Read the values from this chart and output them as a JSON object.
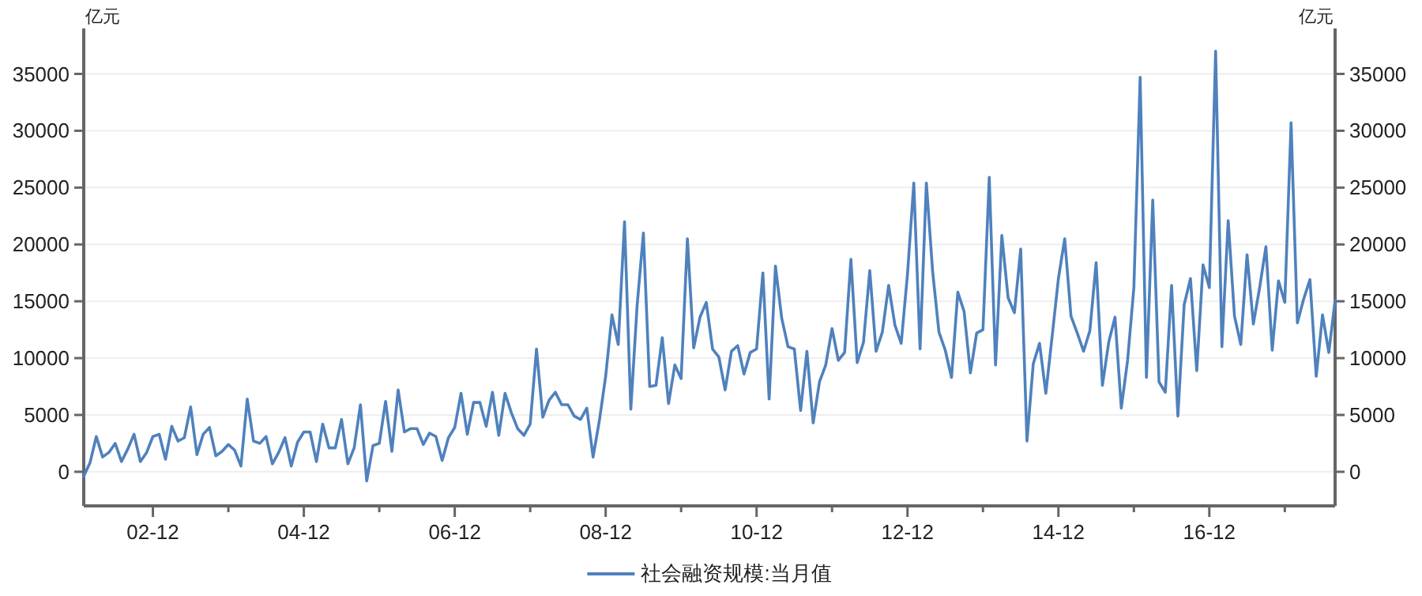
{
  "chart_data": {
    "type": "line",
    "ylabel": "亿元",
    "y2label": "亿元",
    "x": [
      "2002-01",
      "2002-02",
      "2002-03",
      "2002-04",
      "2002-05",
      "2002-06",
      "2002-07",
      "2002-08",
      "2002-09",
      "2002-10",
      "2002-11",
      "2002-12",
      "2003-01",
      "2003-02",
      "2003-03",
      "2003-04",
      "2003-05",
      "2003-06",
      "2003-07",
      "2003-08",
      "2003-09",
      "2003-10",
      "2003-11",
      "2003-12",
      "2004-01",
      "2004-02",
      "2004-03",
      "2004-04",
      "2004-05",
      "2004-06",
      "2004-07",
      "2004-08",
      "2004-09",
      "2004-10",
      "2004-11",
      "2004-12",
      "2005-01",
      "2005-02",
      "2005-03",
      "2005-04",
      "2005-05",
      "2005-06",
      "2005-07",
      "2005-08",
      "2005-09",
      "2005-10",
      "2005-11",
      "2005-12",
      "2006-01",
      "2006-02",
      "2006-03",
      "2006-04",
      "2006-05",
      "2006-06",
      "2006-07",
      "2006-08",
      "2006-09",
      "2006-10",
      "2006-11",
      "2006-12",
      "2007-01",
      "2007-02",
      "2007-03",
      "2007-04",
      "2007-05",
      "2007-06",
      "2007-07",
      "2007-08",
      "2007-09",
      "2007-10",
      "2007-11",
      "2007-12",
      "2008-01",
      "2008-02",
      "2008-03",
      "2008-04",
      "2008-05",
      "2008-06",
      "2008-07",
      "2008-08",
      "2008-09",
      "2008-10",
      "2008-11",
      "2008-12",
      "2009-01",
      "2009-02",
      "2009-03",
      "2009-04",
      "2009-05",
      "2009-06",
      "2009-07",
      "2009-08",
      "2009-09",
      "2009-10",
      "2009-11",
      "2009-12",
      "2010-01",
      "2010-02",
      "2010-03",
      "2010-04",
      "2010-05",
      "2010-06",
      "2010-07",
      "2010-08",
      "2010-09",
      "2010-10",
      "2010-11",
      "2010-12",
      "2011-01",
      "2011-02",
      "2011-03",
      "2011-04",
      "2011-05",
      "2011-06",
      "2011-07",
      "2011-08",
      "2011-09",
      "2011-10",
      "2011-11",
      "2011-12",
      "2012-01",
      "2012-02",
      "2012-03",
      "2012-04",
      "2012-05",
      "2012-06",
      "2012-07",
      "2012-08",
      "2012-09",
      "2012-10",
      "2012-11",
      "2012-12",
      "2013-01",
      "2013-02",
      "2013-03",
      "2013-04",
      "2013-05",
      "2013-06",
      "2013-07",
      "2013-08",
      "2013-09",
      "2013-10",
      "2013-11",
      "2013-12",
      "2014-01",
      "2014-02",
      "2014-03",
      "2014-04",
      "2014-05",
      "2014-06",
      "2014-07",
      "2014-08",
      "2014-09",
      "2014-10",
      "2014-11",
      "2014-12",
      "2015-01",
      "2015-02",
      "2015-03",
      "2015-04",
      "2015-05",
      "2015-06",
      "2015-07",
      "2015-08",
      "2015-09",
      "2015-10",
      "2015-11",
      "2015-12",
      "2016-01",
      "2016-02",
      "2016-03",
      "2016-04",
      "2016-05",
      "2016-06",
      "2016-07",
      "2016-08",
      "2016-09",
      "2016-10",
      "2016-11",
      "2016-12",
      "2017-01",
      "2017-02",
      "2017-03",
      "2017-04",
      "2017-05",
      "2017-06",
      "2017-07",
      "2017-08",
      "2017-09",
      "2017-10",
      "2017-11",
      "2017-12",
      "2018-01",
      "2018-02",
      "2018-03",
      "2018-04",
      "2018-05",
      "2018-06",
      "2018-07",
      "2018-08"
    ],
    "series": [
      {
        "name": "社会融资规模:当月值",
        "color": "#4f81bd",
        "values": [
          -400,
          800,
          3100,
          1300,
          1700,
          2500,
          900,
          2000,
          3300,
          900,
          1700,
          3100,
          3300,
          1100,
          4000,
          2700,
          3000,
          5700,
          1500,
          3300,
          3900,
          1400,
          1800,
          2400,
          1900,
          500,
          6400,
          2700,
          2500,
          3100,
          700,
          1700,
          3000,
          500,
          2600,
          3500,
          3500,
          900,
          4200,
          2100,
          2100,
          4600,
          700,
          2100,
          5900,
          -800,
          2300,
          2500,
          6200,
          1800,
          7200,
          3500,
          3800,
          3800,
          2400,
          3400,
          3100,
          1000,
          3000,
          3900,
          6900,
          3300,
          6100,
          6100,
          4000,
          7000,
          3200,
          6900,
          5200,
          3800,
          3200,
          4200,
          10800,
          4800,
          6300,
          7000,
          5900,
          5900,
          4900,
          4600,
          5600,
          1300,
          4500,
          8400,
          13800,
          11200,
          22000,
          5500,
          14600,
          21000,
          7500,
          7600,
          11800,
          6000,
          9400,
          8200,
          20500,
          10900,
          13600,
          14900,
          10800,
          10100,
          7200,
          10600,
          11100,
          8600,
          10500,
          10800,
          17500,
          6400,
          18100,
          13500,
          11000,
          10800,
          5400,
          10600,
          4300,
          7900,
          9400,
          12600,
          9800,
          10500,
          18700,
          9600,
          11400,
          17700,
          10600,
          12300,
          16400,
          12900,
          11300,
          17400,
          25400,
          10800,
          25400,
          17600,
          12300,
          10700,
          8300,
          15800,
          14100,
          8700,
          12200,
          12500,
          25900,
          9400,
          20800,
          15300,
          14000,
          19600,
          2700,
          9500,
          11300,
          6900,
          11900,
          17000,
          20500,
          13700,
          12200,
          10600,
          12400,
          18400,
          7600,
          11400,
          13600,
          5600,
          9800,
          16200,
          34700,
          8300,
          23900,
          7900,
          7000,
          16400,
          4900,
          14700,
          17000,
          8900,
          18200,
          16200,
          37000,
          11000,
          22100,
          13700,
          11200,
          19100,
          13000,
          16200,
          19800,
          10700,
          16800,
          14900,
          30700,
          13100,
          15200,
          16900,
          8400,
          13800,
          10500,
          15100
        ]
      }
    ],
    "xlim": [
      "2002-01",
      "2018-08"
    ],
    "xticks": [
      {
        "value": "2002-12",
        "label": "02-12"
      },
      {
        "value": "2003-12",
        "label": null
      },
      {
        "value": "2004-12",
        "label": "04-12"
      },
      {
        "value": "2005-12",
        "label": null
      },
      {
        "value": "2006-12",
        "label": "06-12"
      },
      {
        "value": "2007-12",
        "label": null
      },
      {
        "value": "2008-12",
        "label": "08-12"
      },
      {
        "value": "2009-12",
        "label": null
      },
      {
        "value": "2010-12",
        "label": "10-12"
      },
      {
        "value": "2011-12",
        "label": null
      },
      {
        "value": "2012-12",
        "label": "12-12"
      },
      {
        "value": "2013-12",
        "label": null
      },
      {
        "value": "2014-12",
        "label": "14-12"
      },
      {
        "value": "2015-12",
        "label": null
      },
      {
        "value": "2016-12",
        "label": "16-12"
      },
      {
        "value": "2017-12",
        "label": null
      }
    ],
    "ylim": [
      -3000,
      39000
    ],
    "yticks": [
      0,
      5000,
      10000,
      15000,
      20000,
      25000,
      30000,
      35000
    ],
    "y2lim": [
      -3000,
      39000
    ],
    "y2ticks": [
      0,
      5000,
      10000,
      15000,
      20000,
      25000,
      30000,
      35000
    ],
    "grid": "y",
    "legend": "bottom",
    "marker": "none",
    "line_style": "solid"
  }
}
